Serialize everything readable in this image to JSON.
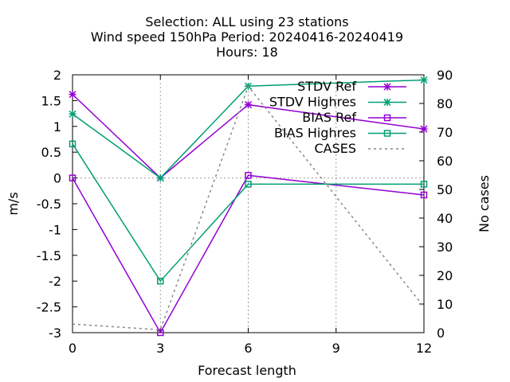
{
  "chart_data": {
    "type": "line",
    "title_lines": [
      "Selection: ALL using    23 stations",
      "Wind speed 150hPa   Period: 20240416-20240419",
      "Hours:  18"
    ],
    "xlabel": "Forecast length",
    "ylabel": "m/s",
    "y2label": "No cases",
    "x": [
      0,
      3,
      6,
      12
    ],
    "xticks": [
      0,
      3,
      6,
      9,
      12
    ],
    "xlim": [
      0,
      12
    ],
    "ylim": [
      -3,
      2
    ],
    "yticks": [
      -3,
      -2.5,
      -2,
      -1.5,
      -1,
      -0.5,
      0,
      0.5,
      1,
      1.5,
      2
    ],
    "y2lim": [
      0,
      90
    ],
    "y2ticks": [
      0,
      10,
      20,
      30,
      40,
      50,
      60,
      70,
      80,
      90
    ],
    "grid": true,
    "legend_position": "top-right",
    "series": [
      {
        "name": "STDV Ref",
        "axis": "y",
        "color": "#9400d3",
        "marker": "star",
        "dash": false,
        "values": [
          1.62,
          0.0,
          1.42,
          0.95
        ]
      },
      {
        "name": "STDV Highres",
        "axis": "y",
        "color": "#009e73",
        "marker": "star",
        "dash": false,
        "values": [
          1.24,
          0.0,
          1.78,
          1.9
        ]
      },
      {
        "name": "BIAS Ref",
        "axis": "y",
        "color": "#9400d3",
        "marker": "square",
        "dash": false,
        "values": [
          0.0,
          -3.0,
          0.05,
          -0.33
        ]
      },
      {
        "name": "BIAS Highres",
        "axis": "y",
        "color": "#009e73",
        "marker": "square",
        "dash": false,
        "values": [
          0.66,
          -2.0,
          -0.12,
          -0.12
        ]
      },
      {
        "name": "CASES",
        "axis": "y2",
        "color": "#888888",
        "marker": "none",
        "dash": true,
        "values": [
          3,
          1,
          86,
          9
        ]
      }
    ]
  }
}
